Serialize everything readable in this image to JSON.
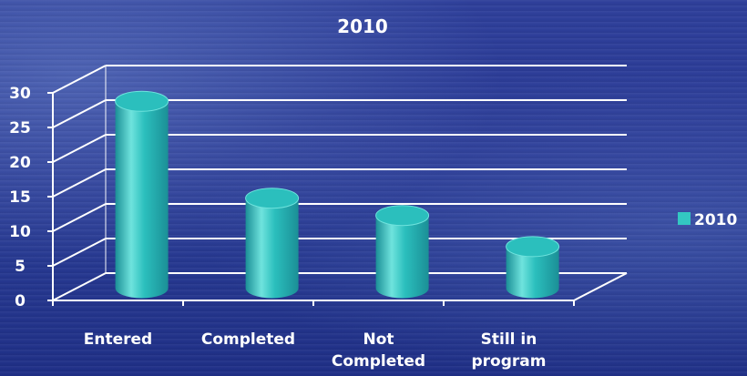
{
  "chart_data": {
    "type": "bar",
    "title": "2010",
    "categories": [
      "Entered",
      "Completed",
      "Not Completed",
      "Still in program"
    ],
    "category_lines": [
      [
        "Entered"
      ],
      [
        "Completed"
      ],
      [
        "Not",
        "Completed"
      ],
      [
        "Still in",
        "program"
      ]
    ],
    "series": [
      {
        "name": "2010",
        "values": [
          27,
          13,
          10.5,
          6
        ]
      }
    ],
    "ylim": [
      0,
      30
    ],
    "yticks": [
      0,
      5,
      10,
      15,
      20,
      25,
      30
    ],
    "grid": true,
    "legend": "right",
    "colors": {
      "bar": "#2bbfbd",
      "bar_dark": "#1b8f96",
      "bar_light": "#6fe3dd",
      "legend": "#33c7c2",
      "grid": "#ffffff"
    }
  }
}
